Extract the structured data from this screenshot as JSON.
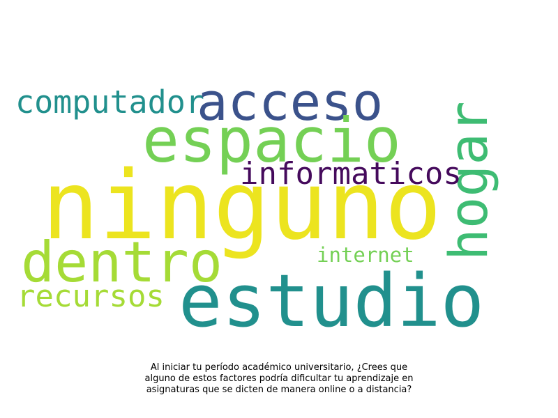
{
  "words": {
    "ninguno": {
      "text": "ninguno",
      "color": "#ece41f"
    },
    "espacio": {
      "text": "espacio",
      "color": "#74d055"
    },
    "estudio": {
      "text": "estudio",
      "color": "#21908d"
    },
    "acceso": {
      "text": "acceso",
      "color": "#3b528b"
    },
    "hogar": {
      "text": "hogar",
      "color": "#3ebc73"
    },
    "dentro": {
      "text": "dentro",
      "color": "#a5db36"
    },
    "informaticos": {
      "text": "informaticos",
      "color": "#450a5c"
    },
    "computador": {
      "text": "computador",
      "color": "#21908d"
    },
    "recursos": {
      "text": "recursos",
      "color": "#a5db36"
    },
    "internet": {
      "text": "internet",
      "color": "#74d055"
    }
  },
  "caption": {
    "line1": "Al iniciar tu período académico universitario, ¿Crees que",
    "line2": "alguno de estos factores podría dificultar tu aprendizaje en",
    "line3": "asignaturas que se dicten de manera online o a distancia?"
  }
}
